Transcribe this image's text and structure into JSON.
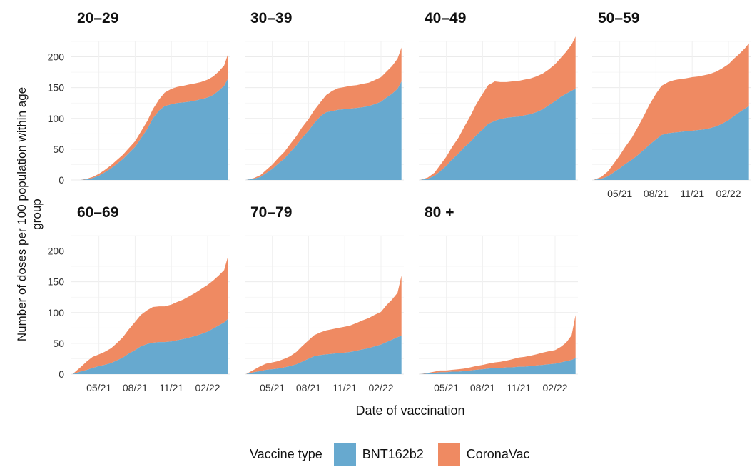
{
  "colors": {
    "BNT162b2": "#67a9cf",
    "CoronaVac": "#ef8a62"
  },
  "axis": {
    "ylabel": "Number of doses per 100 population within age group",
    "xlabel": "Date of vaccination"
  },
  "legend": {
    "title": "Vaccine type",
    "items": [
      {
        "name": "BNT162b2",
        "color": "#67a9cf"
      },
      {
        "name": "CoronaVac",
        "color": "#ef8a62"
      }
    ]
  },
  "chart_data": {
    "type": "area",
    "stacked": true,
    "faceted_by": "age group",
    "xlabel": "Date of vaccination",
    "ylabel": "Number of doses per 100 population within age group",
    "xlim": [
      "2021-02-20",
      "2022-03-31"
    ],
    "ylim": [
      0,
      225
    ],
    "x_ticks": [
      "2021-05-01",
      "2021-08-01",
      "2021-11-01",
      "2022-02-01"
    ],
    "x_tick_labels": [
      "05/21",
      "08/21",
      "11/21",
      "02/22"
    ],
    "y_ticks": [
      0,
      50,
      100,
      150,
      200
    ],
    "grid": true,
    "legend_position": "bottom",
    "x": [
      "2021-02-23",
      "2021-03-15",
      "2021-04-01",
      "2021-04-15",
      "2021-05-01",
      "2021-05-15",
      "2021-06-01",
      "2021-06-15",
      "2021-07-01",
      "2021-07-15",
      "2021-08-01",
      "2021-08-15",
      "2021-09-01",
      "2021-09-15",
      "2021-10-01",
      "2021-10-15",
      "2021-11-01",
      "2021-11-15",
      "2021-12-01",
      "2021-12-15",
      "2022-01-01",
      "2022-01-15",
      "2022-02-01",
      "2022-02-15",
      "2022-03-01",
      "2022-03-15",
      "2022-03-25"
    ],
    "panels": [
      {
        "title": "20–29",
        "series": [
          {
            "name": "BNT162b2",
            "values": [
              0,
              0,
              1,
              3,
              7,
              12,
              19,
              26,
              34,
              43,
              54,
              67,
              83,
              100,
              113,
              120,
              123,
              125,
              126,
              127,
              129,
              131,
              134,
              138,
              145,
              153,
              165
            ]
          },
          {
            "name": "CoronaVac",
            "values": [
              0,
              0,
              1,
              2,
              3,
              4,
              5,
              6,
              7,
              8,
              9,
              11,
              13,
              15,
              18,
              22,
              25,
              26,
              27,
              28,
              28,
              28,
              29,
              30,
              31,
              33,
              40
            ]
          }
        ]
      },
      {
        "title": "30–39",
        "series": [
          {
            "name": "BNT162b2",
            "values": [
              0,
              2,
              5,
              11,
              18,
              26,
              35,
              45,
              56,
              68,
              80,
              92,
              104,
              110,
              112,
              114,
              115,
              116,
              117,
              118,
              120,
              123,
              127,
              134,
              140,
              148,
              160
            ]
          },
          {
            "name": "CoronaVac",
            "values": [
              0,
              1,
              3,
              5,
              7,
              9,
              11,
              13,
              15,
              17,
              19,
              21,
              23,
              28,
              33,
              35,
              36,
              37,
              37,
              38,
              38,
              39,
              40,
              42,
              45,
              49,
              55
            ]
          }
        ]
      },
      {
        "title": "40–49",
        "series": [
          {
            "name": "BNT162b2",
            "values": [
              0,
              2,
              7,
              14,
              23,
              33,
              43,
              53,
              62,
              72,
              82,
              91,
              96,
              99,
              101,
              102,
              103,
              105,
              107,
              110,
              115,
              121,
              128,
              135,
              140,
              145,
              148
            ]
          },
          {
            "name": "CoronaVac",
            "values": [
              0,
              2,
              5,
              10,
              15,
              20,
              26,
              33,
              42,
              50,
              58,
              63,
              64,
              60,
              58,
              58,
              58,
              58,
              58,
              58,
              58,
              58,
              60,
              63,
              68,
              75,
              85
            ]
          }
        ]
      },
      {
        "title": "50–59",
        "series": [
          {
            "name": "BNT162b2",
            "values": [
              0,
              2,
              6,
              12,
              19,
              26,
              33,
              40,
              49,
              57,
              66,
              73,
              76,
              77,
              78,
              79,
              80,
              81,
              82,
              84,
              87,
              91,
              97,
              104,
              110,
              116,
              120
            ]
          },
          {
            "name": "CoronaVac",
            "values": [
              0,
              3,
              8,
              14,
              21,
              28,
              36,
              45,
              55,
              65,
              74,
              80,
              83,
              85,
              86,
              86,
              87,
              87,
              88,
              88,
              89,
              90,
              91,
              93,
              95,
              98,
              102
            ]
          }
        ]
      },
      {
        "title": "60–69",
        "series": [
          {
            "name": "BNT162b2",
            "values": [
              0,
              4,
              7,
              10,
              13,
              15,
              18,
              22,
              27,
              33,
              39,
              45,
              49,
              51,
              52,
              52,
              53,
              55,
              57,
              59,
              62,
              65,
              69,
              74,
              79,
              84,
              90
            ]
          },
          {
            "name": "CoronaVac",
            "values": [
              0,
              7,
              14,
              18,
              19,
              21,
              24,
              28,
              33,
              39,
              46,
              51,
              55,
              58,
              58,
              58,
              60,
              62,
              64,
              67,
              70,
              73,
              76,
              78,
              81,
              85,
              102
            ]
          }
        ]
      },
      {
        "title": "70–79",
        "series": [
          {
            "name": "BNT162b2",
            "values": [
              0,
              3,
              5,
              7,
              8,
              9,
              11,
              13,
              16,
              20,
              25,
              29,
              31,
              32,
              33,
              34,
              35,
              36,
              38,
              40,
              42,
              45,
              48,
              52,
              56,
              60,
              62
            ]
          },
          {
            "name": "CoronaVac",
            "values": [
              0,
              4,
              8,
              10,
              11,
              12,
              14,
              16,
              20,
              25,
              30,
              34,
              37,
              39,
              40,
              41,
              42,
              43,
              45,
              47,
              49,
              51,
              53,
              60,
              65,
              72,
              98
            ]
          }
        ]
      },
      {
        "title": "80 +",
        "series": [
          {
            "name": "BNT162b2",
            "values": [
              0,
              1,
              2,
              3,
              3,
              4,
              4,
              5,
              6,
              7,
              8,
              9,
              10,
              10,
              11,
              11,
              12,
              12,
              13,
              14,
              15,
              16,
              17,
              19,
              21,
              23,
              26
            ]
          },
          {
            "name": "CoronaVac",
            "values": [
              0,
              1,
              2,
              3,
              3,
              3,
              4,
              4,
              5,
              6,
              7,
              8,
              9,
              10,
              11,
              13,
              15,
              16,
              17,
              18,
              20,
              21,
              22,
              25,
              30,
              40,
              70
            ]
          }
        ]
      }
    ]
  }
}
